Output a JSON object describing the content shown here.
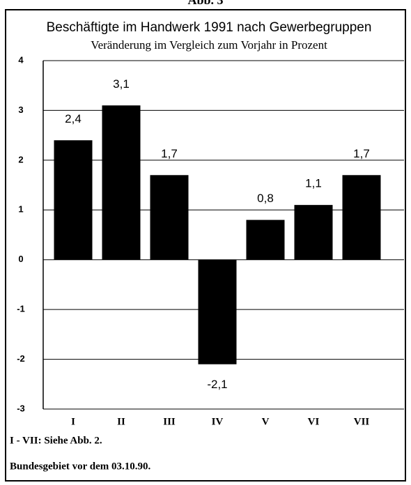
{
  "chart_data": {
    "type": "bar",
    "figure_label": "Abb. 3",
    "title": "Beschäftigte im Handwerk 1991 nach Gewerbegruppen",
    "subtitle": "Veränderung im Vergleich zum Vorjahr in Prozent",
    "categories": [
      "I",
      "II",
      "III",
      "IV",
      "V",
      "VI",
      "VII"
    ],
    "values": [
      2.4,
      3.1,
      1.7,
      -2.1,
      0.8,
      1.1,
      1.7
    ],
    "value_labels": [
      "2,4",
      "3,1",
      "1,7",
      "-2,1",
      "0,8",
      "1,1",
      "1,7"
    ],
    "color": "#000000",
    "ylim": [
      -3,
      4
    ],
    "yticks": [
      4,
      3,
      2,
      1,
      0,
      -1,
      -2,
      -3
    ],
    "grid": true,
    "notes": [
      "I - VII: Siehe Abb. 2.",
      "Bundesgebiet vor dem 03.10.90."
    ]
  }
}
